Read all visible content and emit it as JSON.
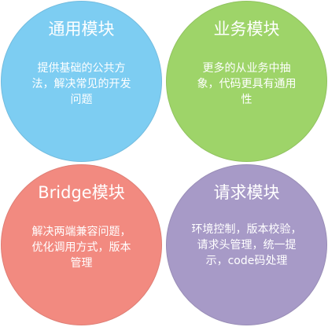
{
  "modules": [
    {
      "title": "通用模块",
      "description": "提供基础的公共方法，解决常见的开发问题",
      "color": "#7dcdf2"
    },
    {
      "title": "业务模块",
      "description": "更多的从业务中抽象，代码更具有通用性",
      "color": "#9ed469"
    },
    {
      "title": "Bridge模块",
      "description": "解决两端兼容问题，优化调用方式，版本管理",
      "color": "#f28a80"
    },
    {
      "title": "请求模块",
      "description": "环境控制，版本校验，请求头管理，统一提示，code码处理",
      "color": "#a79ac7"
    }
  ]
}
